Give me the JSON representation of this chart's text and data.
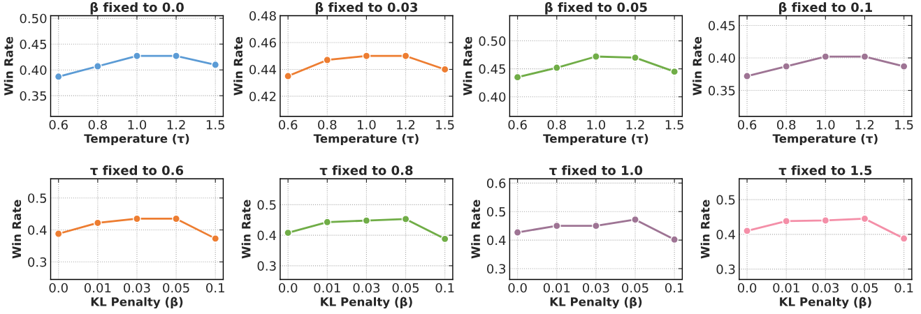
{
  "chart_data": [
    {
      "type": "line",
      "title": "β fixed to 0.0",
      "xlabel": "Temperature (τ)",
      "ylabel": "Win Rate",
      "categories": [
        "0.6",
        "0.8",
        "1.0",
        "1.2",
        "1.5"
      ],
      "series": [
        {
          "color": "#5b9bd5",
          "values": [
            0.387,
            0.407,
            0.427,
            0.427,
            0.41
          ]
        }
      ],
      "ylim": [
        0.31,
        0.505
      ],
      "yticks": [
        {
          "value": 0.35,
          "label": "0.35"
        },
        {
          "value": 0.4,
          "label": "0.40"
        },
        {
          "value": 0.45,
          "label": "0.45"
        },
        {
          "value": 0.5,
          "label": "0.50"
        }
      ],
      "grid": true,
      "marker": "circle",
      "line_style": "solid"
    },
    {
      "type": "line",
      "title": "β fixed to 0.03",
      "xlabel": "Temperature (τ)",
      "ylabel": "Win Rate",
      "categories": [
        "0.6",
        "0.8",
        "1.0",
        "1.2",
        "1.5"
      ],
      "series": [
        {
          "color": "#ed7d31",
          "values": [
            0.435,
            0.447,
            0.45,
            0.45,
            0.44
          ]
        }
      ],
      "ylim": [
        0.405,
        0.48
      ],
      "yticks": [
        0.42,
        0.44,
        0.46,
        0.48
      ],
      "grid": true,
      "marker": "circle",
      "line_style": "solid"
    },
    {
      "type": "line",
      "title": "β fixed to 0.05",
      "xlabel": "Temperature (τ)",
      "ylabel": "Win Rate",
      "categories": [
        "0.6",
        "0.8",
        "1.0",
        "1.2",
        "1.5"
      ],
      "series": [
        {
          "color": "#70ad47",
          "values": [
            0.435,
            0.452,
            0.472,
            0.47,
            0.445
          ]
        }
      ],
      "ylim": [
        0.365,
        0.545
      ],
      "yticks": [
        {
          "value": 0.4,
          "label": "0.40"
        },
        0.45,
        {
          "value": 0.5,
          "label": "0.50"
        }
      ],
      "grid": true,
      "marker": "circle",
      "line_style": "solid"
    },
    {
      "type": "line",
      "title": "β fixed to 0.1",
      "xlabel": "Temperature (τ)",
      "ylabel": "Win Rate",
      "categories": [
        "0.6",
        "0.8",
        "1.0",
        "1.2",
        "1.5"
      ],
      "series": [
        {
          "color": "#9e7494",
          "values": [
            0.372,
            0.387,
            0.402,
            0.402,
            0.387
          ]
        }
      ],
      "ylim": [
        0.31,
        0.465
      ],
      "yticks": [
        0.35,
        {
          "value": 0.4,
          "label": "0.40"
        },
        0.45
      ],
      "grid": true,
      "marker": "circle",
      "line_style": "solid"
    },
    {
      "type": "line",
      "title": "τ fixed to 0.6",
      "xlabel": "KL Penalty (β)",
      "ylabel": "Win Rate",
      "categories": [
        "0.0",
        "0.01",
        "0.03",
        "0.05",
        "0.1"
      ],
      "series": [
        {
          "color": "#ed7d31",
          "values": [
            0.388,
            0.422,
            0.435,
            0.435,
            0.373
          ]
        }
      ],
      "ylim": [
        0.245,
        0.56
      ],
      "yticks": [
        0.3,
        0.4,
        0.5
      ],
      "grid": true,
      "marker": "circle",
      "line_style": "solid"
    },
    {
      "type": "line",
      "title": "τ fixed to 0.8",
      "xlabel": "KL Penalty (β)",
      "ylabel": "Win Rate",
      "categories": [
        "0.0",
        "0.01",
        "0.03",
        "0.05",
        "0.1"
      ],
      "series": [
        {
          "color": "#70ad47",
          "values": [
            0.408,
            0.443,
            0.448,
            0.453,
            0.388
          ]
        }
      ],
      "ylim": [
        0.255,
        0.585
      ],
      "yticks": [
        0.3,
        0.4,
        0.5
      ],
      "grid": true,
      "marker": "circle",
      "line_style": "solid"
    },
    {
      "type": "line",
      "title": "τ fixed to 1.0",
      "xlabel": "KL Penalty (β)",
      "ylabel": "Win Rate",
      "categories": [
        "0.0",
        "0.01",
        "0.03",
        "0.05",
        "0.1"
      ],
      "series": [
        {
          "color": "#9e7494",
          "values": [
            0.427,
            0.45,
            0.45,
            0.472,
            0.402
          ]
        }
      ],
      "ylim": [
        0.262,
        0.615
      ],
      "yticks": [
        0.3,
        0.4,
        0.5,
        0.6
      ],
      "grid": true,
      "marker": "circle",
      "line_style": "solid"
    },
    {
      "type": "line",
      "title": "τ fixed to 1.5",
      "xlabel": "KL Penalty (β)",
      "ylabel": "Win Rate",
      "categories": [
        "0.0",
        "0.01",
        "0.03",
        "0.05",
        "0.1"
      ],
      "series": [
        {
          "color": "#f48fa8",
          "values": [
            0.41,
            0.438,
            0.44,
            0.445,
            0.388
          ]
        }
      ],
      "ylim": [
        0.27,
        0.56
      ],
      "yticks": [
        0.3,
        0.4,
        0.5
      ],
      "grid": true,
      "marker": "circle",
      "line_style": "solid"
    }
  ]
}
